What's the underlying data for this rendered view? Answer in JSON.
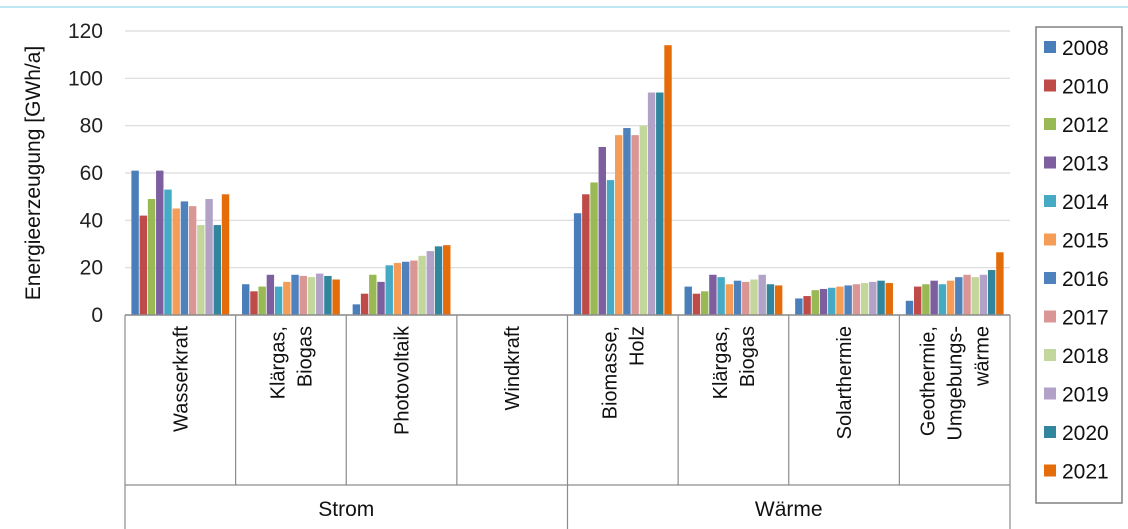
{
  "chart_data": {
    "type": "bar",
    "title": "",
    "ylabel": "Energieerzeugung [GWh/a]",
    "ylim": [
      0,
      120
    ],
    "yticks": [
      0,
      20,
      40,
      60,
      80,
      100,
      120
    ],
    "grid": true,
    "legend_position": "right",
    "categories": [
      "Wasserkraft",
      "Klärgas,\nBiogas",
      "Photovoltaik",
      "Windkraft",
      "Biomasse,\nHolz",
      "Klärgas,\nBiogas",
      "Solarthermie",
      "Geothermie,\nUmgebungs-\nwärme"
    ],
    "groups": [
      {
        "label": "Strom",
        "span": [
          0,
          3
        ]
      },
      {
        "label": "Wärme",
        "span": [
          4,
          7
        ]
      }
    ],
    "series": [
      {
        "name": "2008",
        "color": "#4A7EBB",
        "values": [
          61,
          13,
          4.5,
          0,
          43,
          12,
          7,
          6
        ]
      },
      {
        "name": "2010",
        "color": "#BE4B48",
        "values": [
          42,
          10,
          9,
          0,
          51,
          9,
          8,
          12
        ]
      },
      {
        "name": "2012",
        "color": "#98B954",
        "values": [
          49,
          12,
          17,
          0,
          56,
          10,
          10.5,
          13
        ]
      },
      {
        "name": "2013",
        "color": "#7D5FA0",
        "values": [
          61,
          17,
          14,
          0,
          71,
          17,
          11,
          14.5
        ]
      },
      {
        "name": "2014",
        "color": "#46AAC4",
        "values": [
          53,
          12,
          21,
          0,
          57,
          16,
          11.5,
          13
        ]
      },
      {
        "name": "2015",
        "color": "#F59D56",
        "values": [
          45,
          14,
          22,
          0,
          76,
          13,
          12,
          14.5
        ]
      },
      {
        "name": "2016",
        "color": "#4F81BD",
        "values": [
          48,
          17,
          22.5,
          0,
          79,
          14.5,
          12.5,
          16
        ]
      },
      {
        "name": "2017",
        "color": "#D99694",
        "values": [
          46,
          16.5,
          23,
          0,
          76,
          14,
          13,
          17
        ]
      },
      {
        "name": "2018",
        "color": "#C3D69B",
        "values": [
          38,
          16,
          25,
          0,
          80,
          15,
          13.5,
          16
        ]
      },
      {
        "name": "2019",
        "color": "#B3A2C7",
        "values": [
          49,
          17.5,
          27,
          0,
          94,
          17,
          14,
          17
        ]
      },
      {
        "name": "2020",
        "color": "#31859C",
        "values": [
          38,
          16.5,
          29,
          0,
          94,
          13,
          14.5,
          19
        ]
      },
      {
        "name": "2021",
        "color": "#E46C0A",
        "values": [
          51,
          15,
          29.5,
          0,
          114,
          12.5,
          13.5,
          26.5
        ]
      }
    ]
  }
}
